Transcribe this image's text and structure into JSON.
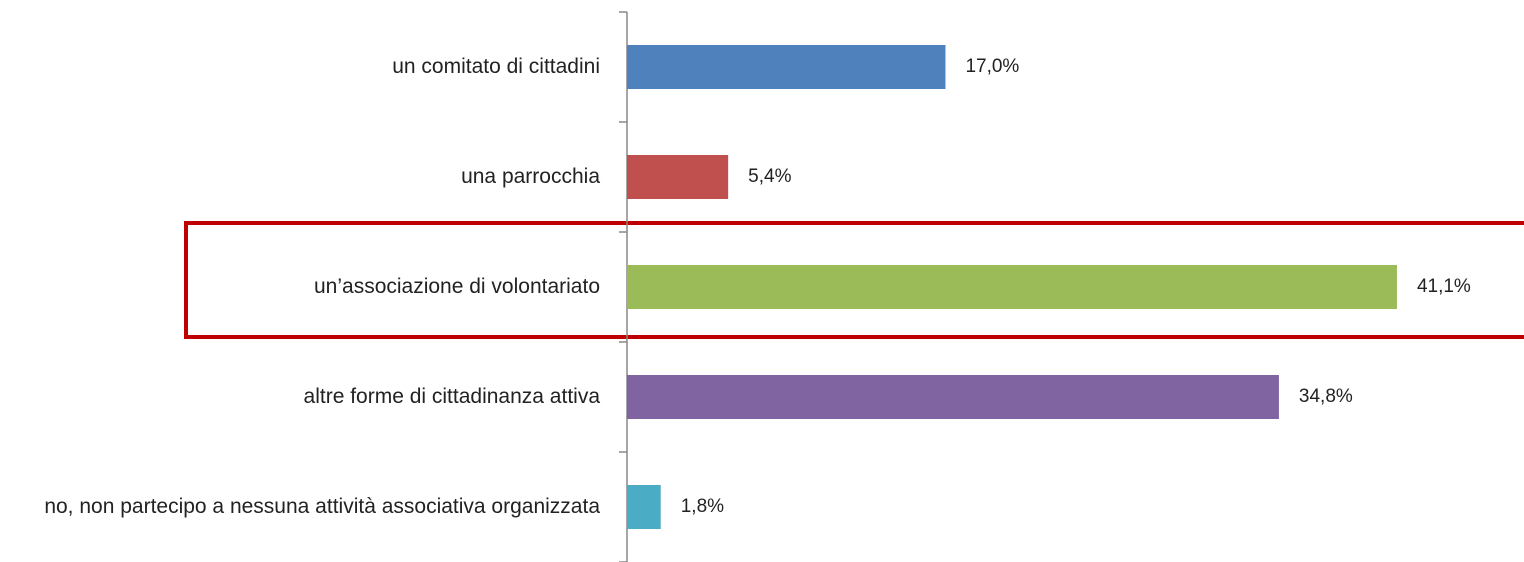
{
  "chart_data": {
    "type": "bar",
    "orientation": "horizontal",
    "categories": [
      "un comitato di cittadini",
      "una parrocchia",
      "un’associazione di volontariato",
      "altre forme di cittadinanza attiva",
      "no, non partecipo a nessuna attività associativa organizzata"
    ],
    "values": [
      17.0,
      5.4,
      41.1,
      34.8,
      1.8
    ],
    "value_labels": [
      "17,0%",
      "5,4%",
      "41,1%",
      "34,8%",
      "1,8%"
    ],
    "colors": [
      "#4f81bd",
      "#c0504d",
      "#9bbb59",
      "#8064a2",
      "#4bacc6"
    ],
    "xlim": [
      0,
      45
    ]
  }
}
